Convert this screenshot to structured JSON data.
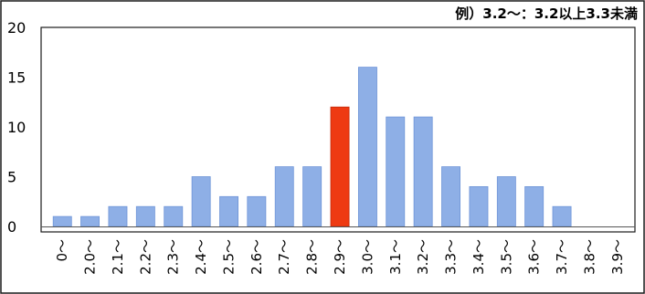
{
  "chart_data": {
    "type": "bar",
    "note": "例）3.2〜：3.2以上3.3未満",
    "categories": [
      "0〜",
      "2.0〜",
      "2.1〜",
      "2.2〜",
      "2.3〜",
      "2.4〜",
      "2.5〜",
      "2.6〜",
      "2.7〜",
      "2.8〜",
      "2.9〜",
      "3.0〜",
      "3.1〜",
      "3.2〜",
      "3.3〜",
      "3.4〜",
      "3.5〜",
      "3.6〜",
      "3.7〜",
      "3.8〜",
      "3.9〜"
    ],
    "values": [
      1,
      1,
      2,
      2,
      2,
      5,
      3,
      3,
      6,
      6,
      12,
      16,
      11,
      11,
      6,
      4,
      5,
      4,
      2,
      0,
      0
    ],
    "highlight_index": 10,
    "ylim": [
      0,
      20
    ],
    "yticks": [
      0,
      5,
      10,
      15,
      20
    ],
    "grid": false,
    "colors": {
      "bar": "#8eafe6",
      "bar_edge": "#6f95d8",
      "highlight": "#ee3a12",
      "highlight_edge": "#c42a0a",
      "axis": "#000000",
      "frame": "#1a1a1a"
    }
  }
}
